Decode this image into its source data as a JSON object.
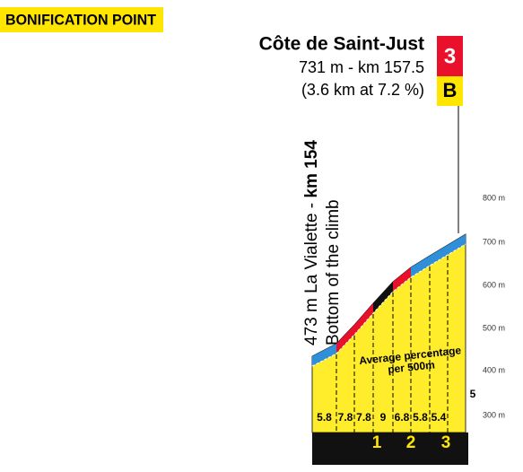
{
  "badge": "BONIFICATION POINT",
  "climb": {
    "name": "Côte de Saint-Just",
    "altitude_km": "731 m - km 157.5",
    "stats": "(3.6 km at 7.2 %)",
    "category": "3",
    "bonus": "B"
  },
  "start": {
    "place": "473 m La Vialette - ",
    "km": "km 154",
    "note": "Bottom of the climb"
  },
  "axis_labels": [
    "800 m",
    "700 m",
    "600 m",
    "500 m",
    "400 m",
    "300 m"
  ],
  "profile": {
    "caption": [
      "Average percentage",
      "per 500m"
    ],
    "gradients": [
      5.8,
      7.8,
      7.8,
      9,
      6.8,
      5.8,
      5.4,
      5
    ],
    "km_marks": [
      1,
      2,
      3
    ]
  }
}
